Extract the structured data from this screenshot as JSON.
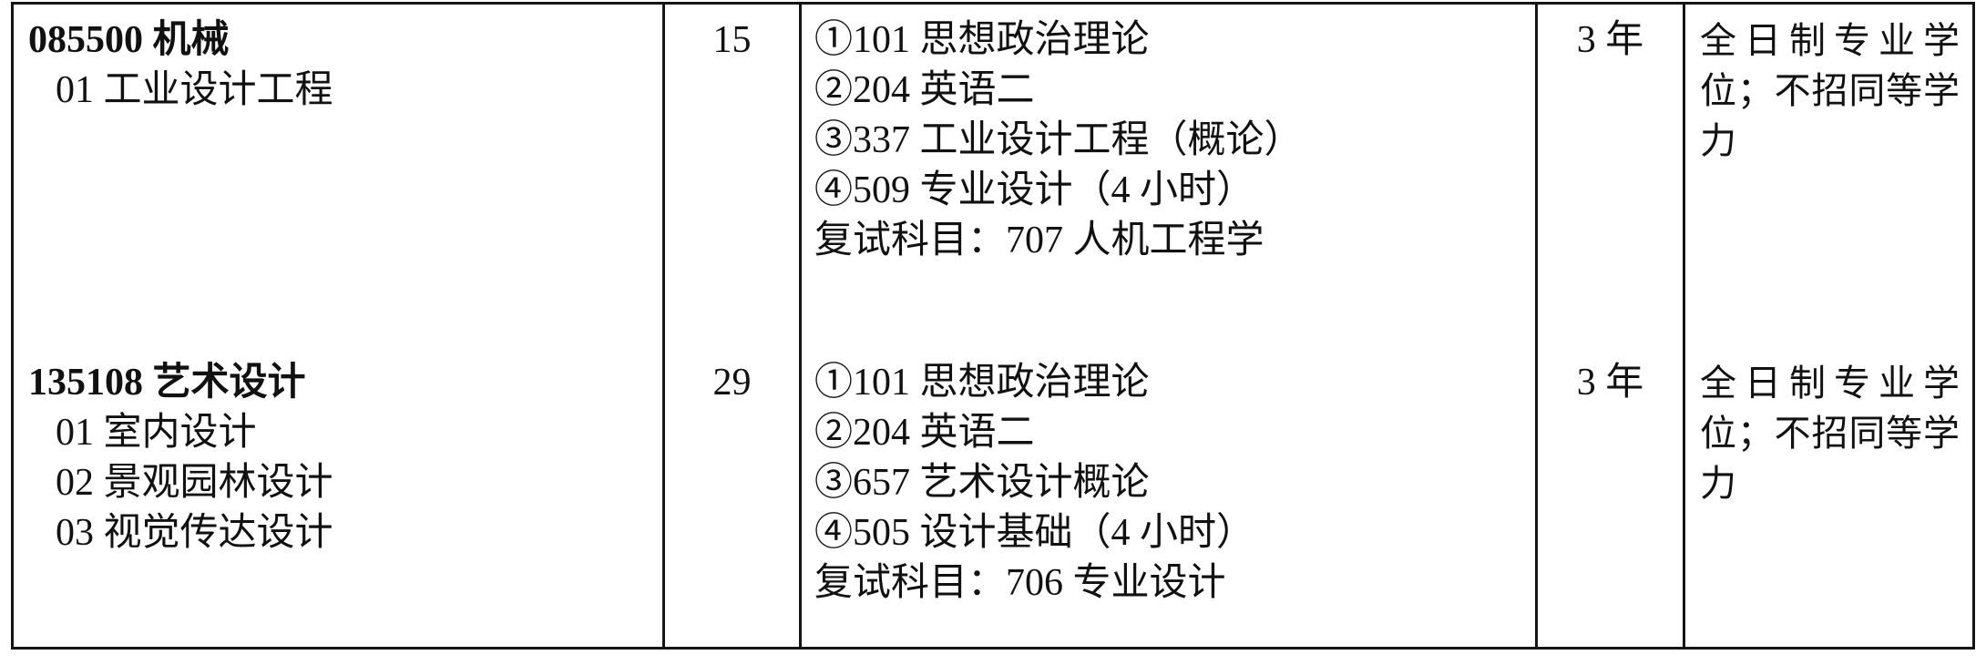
{
  "table": {
    "rows": [
      {
        "program_title": "085500 机械",
        "directions": [
          "01 工业设计工程"
        ],
        "quota": "15",
        "subjects": [
          "①101 思想政治理论",
          "②204 英语二",
          "③337 工业设计工程（概论）",
          "④509 专业设计（4 小时）",
          "复试科目：707 人机工程学"
        ],
        "duration": "3 年",
        "note_text": "全日制专业学位；不招同等学力",
        "note_lines": [
          "全日制专业学",
          "位；不招同等学",
          "力"
        ]
      },
      {
        "program_title": "135108 艺术设计",
        "directions": [
          "01 室内设计",
          "02 景观园林设计",
          "03 视觉传达设计"
        ],
        "quota": "29",
        "subjects": [
          "①101 思想政治理论",
          "②204 英语二",
          "③657 艺术设计概论",
          "④505 设计基础（4 小时）",
          "复试科目：706 专业设计"
        ],
        "duration": "3 年",
        "note_text": "全日制专业学位；不招同等学力",
        "note_lines": [
          "全日制专业学",
          "位；不招同等学",
          "力"
        ]
      }
    ]
  }
}
